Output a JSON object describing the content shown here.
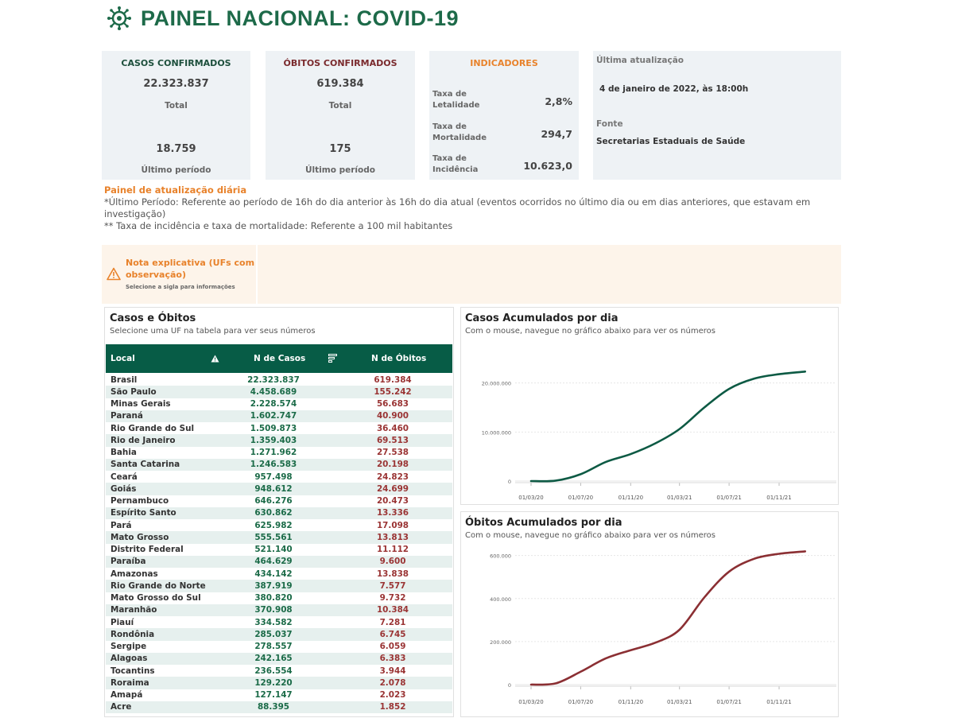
{
  "header": {
    "title": "PAINEL NACIONAL: COVID-19"
  },
  "cards": {
    "casos": {
      "title": "CASOS CONFIRMADOS",
      "total": "22.323.837",
      "total_label": "Total",
      "period": "18.759",
      "period_label": "Último período"
    },
    "obitos": {
      "title": "ÓBITOS CONFIRMADOS",
      "total": "619.384",
      "total_label": "Total",
      "period": "175",
      "period_label": "Último período"
    },
    "indicadores": {
      "title": "INDICADORES",
      "items": [
        {
          "label": "Taxa de Letalidade",
          "value": "2,8%"
        },
        {
          "label": "Taxa de Mortalidade",
          "value": "294,7"
        },
        {
          "label": "Taxa de Incidência",
          "value": "10.623,0"
        }
      ]
    },
    "update": {
      "label": "Última atualização",
      "value": "4 de janeiro de 2022, às 18:00h",
      "source_label": "Fonte",
      "source": "Secretarias Estaduais de Saúde"
    }
  },
  "notes": {
    "head": "Painel de atualização diária",
    "line1": "*Último Período: Referente ao período de 16h do dia anterior às 16h do dia atual (eventos ocorridos no último dia ou em dias anteriores, que estavam em investigação)",
    "line2": "** Taxa de incidência e taxa de mortalidade: Referente a 100 mil habitantes"
  },
  "nota": {
    "title": "Nota explicativa (UFs com observação)",
    "sub": "Selecione a sigla para informações"
  },
  "table": {
    "title": "Casos e Óbitos",
    "subtitle": "Selecione uma UF na tabela para ver seus números",
    "columns": [
      "Local",
      "N de Casos",
      "N de Óbitos"
    ],
    "rows": [
      [
        "Brasil",
        "22.323.837",
        "619.384"
      ],
      [
        "São Paulo",
        "4.458.689",
        "155.242"
      ],
      [
        "Minas Gerais",
        "2.228.574",
        "56.683"
      ],
      [
        "Paraná",
        "1.602.747",
        "40.900"
      ],
      [
        "Rio Grande do Sul",
        "1.509.873",
        "36.460"
      ],
      [
        "Rio de Janeiro",
        "1.359.403",
        "69.513"
      ],
      [
        "Bahia",
        "1.271.962",
        "27.538"
      ],
      [
        "Santa Catarina",
        "1.246.583",
        "20.198"
      ],
      [
        "Ceará",
        "957.498",
        "24.823"
      ],
      [
        "Goiás",
        "948.612",
        "24.699"
      ],
      [
        "Pernambuco",
        "646.276",
        "20.473"
      ],
      [
        "Espírito Santo",
        "630.862",
        "13.336"
      ],
      [
        "Pará",
        "625.982",
        "17.098"
      ],
      [
        "Mato Grosso",
        "555.561",
        "13.813"
      ],
      [
        "Distrito Federal",
        "521.140",
        "11.112"
      ],
      [
        "Paraíba",
        "464.629",
        "9.600"
      ],
      [
        "Amazonas",
        "434.142",
        "13.838"
      ],
      [
        "Rio Grande do Norte",
        "387.919",
        "7.577"
      ],
      [
        "Mato Grosso do Sul",
        "380.820",
        "9.732"
      ],
      [
        "Maranhão",
        "370.908",
        "10.384"
      ],
      [
        "Piauí",
        "334.582",
        "7.281"
      ],
      [
        "Rondônia",
        "285.037",
        "6.745"
      ],
      [
        "Sergipe",
        "278.557",
        "6.059"
      ],
      [
        "Alagoas",
        "242.165",
        "6.383"
      ],
      [
        "Tocantins",
        "236.554",
        "3.944"
      ],
      [
        "Roraima",
        "129.220",
        "2.078"
      ],
      [
        "Amapá",
        "127.147",
        "2.023"
      ],
      [
        "Acre",
        "88.395",
        "1.852"
      ]
    ]
  },
  "chart_data": [
    {
      "type": "line",
      "title": "Casos Acumulados por dia",
      "subtitle": "Com o mouse, navegue no gráfico abaixo para ver os números",
      "color": "#0d5a44",
      "x_ticks": [
        "01/03/20",
        "01/07/20",
        "01/11/20",
        "01/03/21",
        "01/07/21",
        "01/11/21"
      ],
      "y_ticks": [
        "0",
        "10.000.000",
        "20.000.000"
      ],
      "ylim": [
        0,
        24000000
      ],
      "x": [
        "01/03/20",
        "01/05/20",
        "01/07/20",
        "01/09/20",
        "01/11/20",
        "01/01/21",
        "01/03/21",
        "01/05/21",
        "01/07/21",
        "01/09/21",
        "01/11/21",
        "04/01/22"
      ],
      "y": [
        0,
        90000,
        1400000,
        3900000,
        5500000,
        7700000,
        10600000,
        15000000,
        18800000,
        20900000,
        21800000,
        22323837
      ]
    },
    {
      "type": "line",
      "title": "Óbitos Acumulados por dia",
      "subtitle": "Com o mouse, navegue no gráfico abaixo para ver os números",
      "color": "#8b2f33",
      "x_ticks": [
        "01/03/20",
        "01/07/20",
        "01/11/20",
        "01/03/21",
        "01/07/21",
        "01/11/21"
      ],
      "y_ticks": [
        "0",
        "200.000",
        "400.000",
        "600.000"
      ],
      "ylim": [
        0,
        680000
      ],
      "x": [
        "01/03/20",
        "01/05/20",
        "01/07/20",
        "01/09/20",
        "01/11/20",
        "01/01/21",
        "01/03/21",
        "01/05/21",
        "01/07/21",
        "01/09/21",
        "01/11/21",
        "04/01/22"
      ],
      "y": [
        0,
        6000,
        60000,
        122000,
        160000,
        195000,
        255000,
        405000,
        525000,
        585000,
        608000,
        619384
      ]
    }
  ]
}
